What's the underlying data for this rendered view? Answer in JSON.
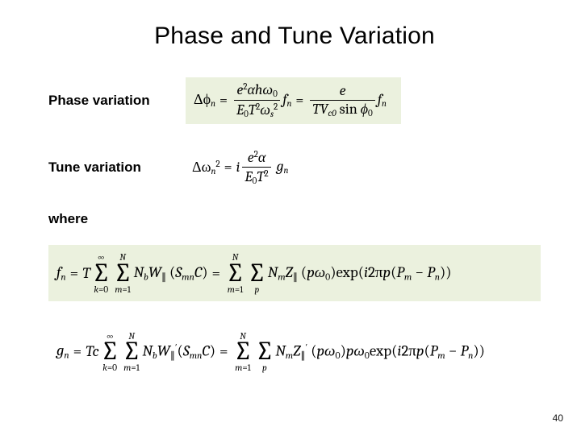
{
  "title": "Phase and Tune Variation",
  "labels": {
    "phase": "Phase variation",
    "tune": "Tune variation",
    "where": "where"
  },
  "eq_phase": {
    "lhs_var": "Δϕ",
    "lhs_sub": "n",
    "frac1_num_parts": [
      "e",
      "2",
      "αhω",
      "0"
    ],
    "frac1_den_parts": [
      "E",
      "0",
      "T",
      "2",
      "ω",
      "s",
      "2"
    ],
    "mid_var": "f",
    "mid_sub": "n",
    "frac2_num": "e",
    "frac2_den_parts": [
      "TV",
      "c0",
      " sin ",
      "ϕ",
      "0"
    ],
    "rhs_var": "f",
    "rhs_sub": "n"
  },
  "eq_tune": {
    "lhs_var": "Δω",
    "lhs_sub": "n",
    "lhs_sup": "2",
    "pre": "i",
    "frac_num_parts": [
      "e",
      "2",
      "α"
    ],
    "frac_den_parts": [
      "E",
      "0",
      "T",
      "2"
    ],
    "rhs_var": "g",
    "rhs_sub": "n"
  },
  "eq_fn": {
    "lhs_var": "f",
    "lhs_sub": "n",
    "coef": "T",
    "sum1_top": "∞",
    "sum1_bot_var": "k",
    "sum1_bot_val": "0",
    "sum2_top": "N",
    "sum2_bot_var": "m",
    "sum2_bot_val": "1",
    "term_parts": [
      "N",
      "b",
      "W",
      "∥",
      " (",
      "S",
      "mn",
      "C",
      ")"
    ],
    "sum3_top": "N",
    "sum3_bot_var": "m",
    "sum3_bot_val": "1",
    "sum4_bot_var": "p",
    "rhs_parts": [
      "N",
      "m",
      "Z",
      "∥",
      " (",
      "pω",
      "0",
      ")exp(",
      "i",
      "2π",
      "p",
      "(",
      "P",
      "m",
      " − ",
      "P",
      "n",
      "))"
    ]
  },
  "eq_gn": {
    "lhs_var": "g",
    "lhs_sub": "n",
    "coef": "Tc",
    "sum1_top": "∞",
    "sum1_bot_var": "k",
    "sum1_bot_val": "0",
    "sum2_top": "N",
    "sum2_bot_var": "m",
    "sum2_bot_val": "1",
    "term_parts": [
      "N",
      "b",
      "W",
      "∥",
      "′",
      "(",
      "S",
      "mn",
      "C",
      ")"
    ],
    "sum3_top": "N",
    "sum3_bot_var": "m",
    "sum3_bot_val": "1",
    "sum4_bot_var": "p",
    "rhs_parts": [
      "N",
      "m",
      "Z",
      "∥",
      "′",
      " (",
      "pω",
      "0",
      ")",
      "pω",
      "0",
      "exp(",
      "i",
      "2π",
      "p",
      "(",
      "P",
      "m",
      " − ",
      "P",
      "n",
      "))"
    ]
  },
  "colors": {
    "highlight": "#ebf1de",
    "background": "#ffffff",
    "text": "#000000"
  },
  "page_number": "40"
}
